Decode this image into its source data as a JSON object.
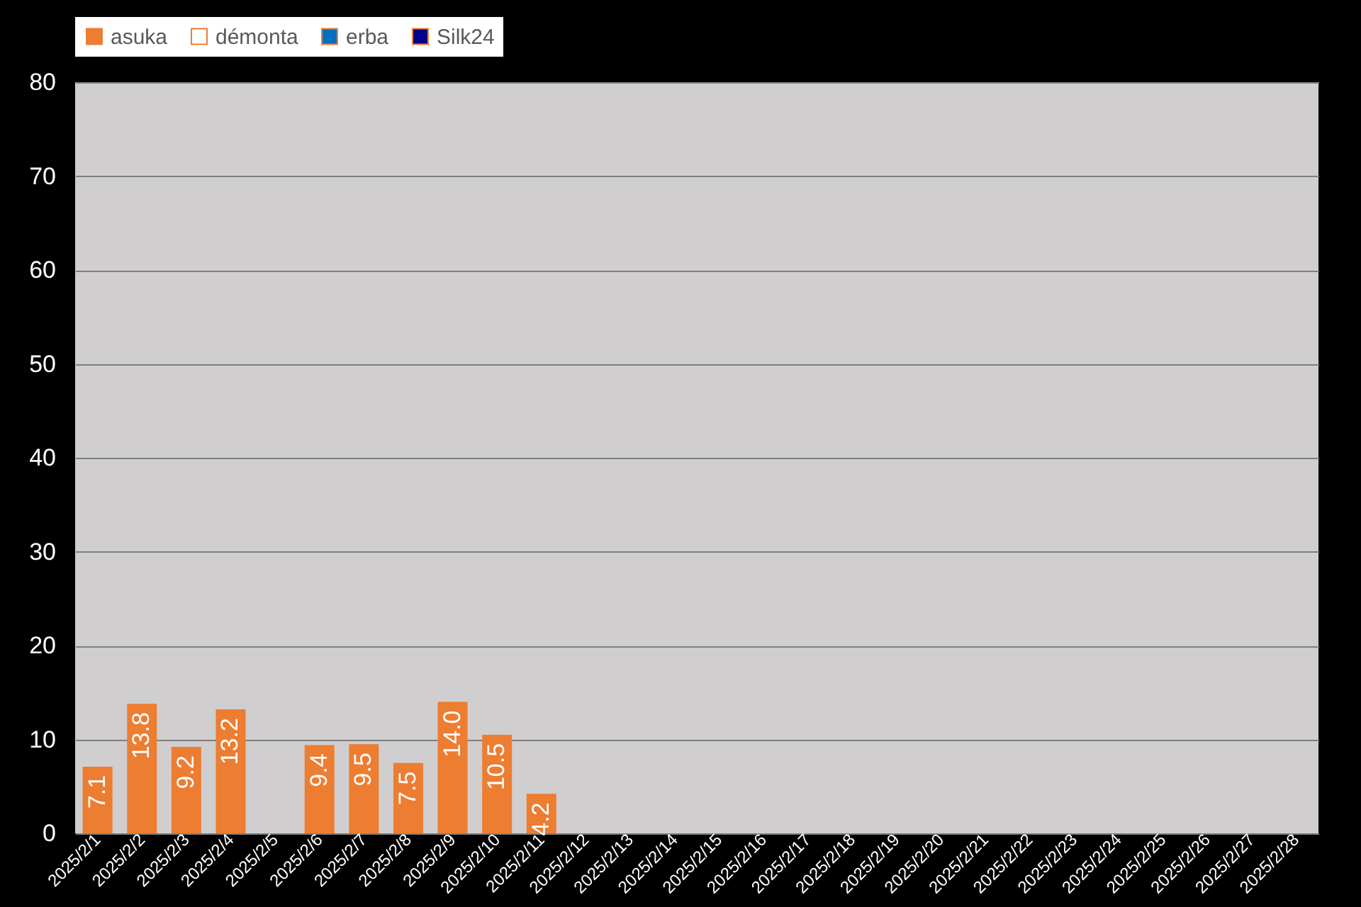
{
  "chart_data": {
    "type": "bar",
    "categories": [
      "2025/2/1",
      "2025/2/2",
      "2025/2/3",
      "2025/2/4",
      "2025/2/5",
      "2025/2/6",
      "2025/2/7",
      "2025/2/8",
      "2025/2/9",
      "2025/2/10",
      "2025/2/11",
      "2025/2/12",
      "2025/2/13",
      "2025/2/14",
      "2025/2/15",
      "2025/2/16",
      "2025/2/17",
      "2025/2/18",
      "2025/2/19",
      "2025/2/20",
      "2025/2/21",
      "2025/2/22",
      "2025/2/23",
      "2025/2/24",
      "2025/2/25",
      "2025/2/26",
      "2025/2/27",
      "2025/2/28"
    ],
    "series": [
      {
        "name": "asuka",
        "color": "#ed7d31",
        "values": [
          7.1,
          13.8,
          9.2,
          13.2,
          null,
          9.4,
          9.5,
          7.5,
          14.0,
          10.5,
          4.2,
          null,
          null,
          null,
          null,
          null,
          null,
          null,
          null,
          null,
          null,
          null,
          null,
          null,
          null,
          null,
          null,
          null
        ],
        "value_labels": [
          "7.1",
          "13.8",
          "9.2",
          "13.2",
          null,
          "9.4",
          "9.5",
          "7.5",
          "14.0",
          "10.5",
          "4.2",
          null,
          null,
          null,
          null,
          null,
          null,
          null,
          null,
          null,
          null,
          null,
          null,
          null,
          null,
          null,
          null,
          null
        ]
      },
      {
        "name": "démonta",
        "color": "#ffffff",
        "values": [
          null,
          null,
          null,
          null,
          null,
          null,
          null,
          null,
          null,
          null,
          null,
          null,
          null,
          null,
          null,
          null,
          null,
          null,
          null,
          null,
          null,
          null,
          null,
          null,
          null,
          null,
          null,
          null
        ]
      },
      {
        "name": "erba",
        "color": "#0070c0",
        "values": [
          null,
          null,
          null,
          null,
          null,
          null,
          null,
          null,
          null,
          null,
          null,
          null,
          null,
          null,
          null,
          null,
          null,
          null,
          null,
          null,
          null,
          null,
          null,
          null,
          null,
          null,
          null,
          null
        ]
      },
      {
        "name": "Silk24",
        "color": "#00008b",
        "values": [
          null,
          null,
          null,
          null,
          null,
          null,
          null,
          null,
          null,
          null,
          null,
          null,
          null,
          null,
          null,
          null,
          null,
          null,
          null,
          null,
          null,
          null,
          null,
          null,
          null,
          null,
          null,
          null
        ]
      }
    ],
    "ylim": [
      0,
      80
    ],
    "yticks": [
      0,
      10,
      20,
      30,
      40,
      50,
      60,
      70,
      80
    ],
    "grid": "y",
    "legend": "top"
  }
}
